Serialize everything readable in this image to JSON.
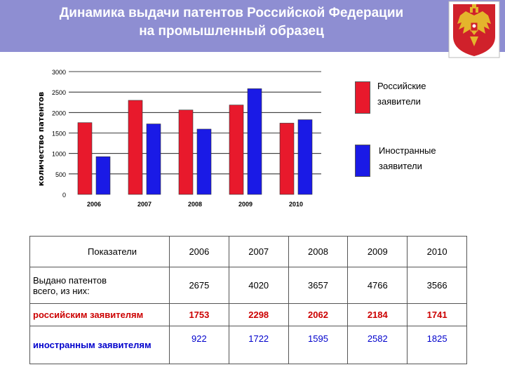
{
  "header": {
    "title_line1": "Динамика выдачи патентов Российской Федерации",
    "title_line2": "на промышленный образец"
  },
  "colors": {
    "russian": "#e8192c",
    "foreign": "#1a1ae6",
    "header_bg": "#8e8ed2"
  },
  "chart_data": {
    "type": "bar",
    "categories": [
      "2006",
      "2007",
      "2008",
      "2009",
      "2010"
    ],
    "series": [
      {
        "name": "Российские заявители",
        "values": [
          1753,
          2298,
          2062,
          2184,
          1741
        ]
      },
      {
        "name": "Иностранные заявители",
        "values": [
          922,
          1722,
          1595,
          2582,
          1825
        ]
      }
    ],
    "title": "",
    "xlabel": "",
    "ylabel": "количество патентов",
    "ylim": [
      0,
      3000
    ],
    "yticks": [
      0,
      500,
      1000,
      1500,
      2000,
      2500,
      3000
    ],
    "grid": true,
    "legend": "right"
  },
  "legend": {
    "russian_line1": "Российские",
    "russian_line2": "заявители",
    "foreign_line1": "Иностранные",
    "foreign_line2": "заявители"
  },
  "table": {
    "header_label": "Показатели",
    "years": [
      "2006",
      "2007",
      "2008",
      "2009",
      "2010"
    ],
    "rows": [
      {
        "label_line1": "Выдано патентов",
        "label_line2": "всего, из них:",
        "values": [
          "2675",
          "4020",
          "3657",
          "4766",
          "3566"
        ]
      },
      {
        "label": "российским заявителям",
        "values": [
          "1753",
          "2298",
          "2062",
          "2184",
          "1741"
        ]
      },
      {
        "label": "иностранным заявителям",
        "values": [
          "922",
          "1722",
          "1595",
          "2582",
          "1825"
        ]
      }
    ]
  }
}
